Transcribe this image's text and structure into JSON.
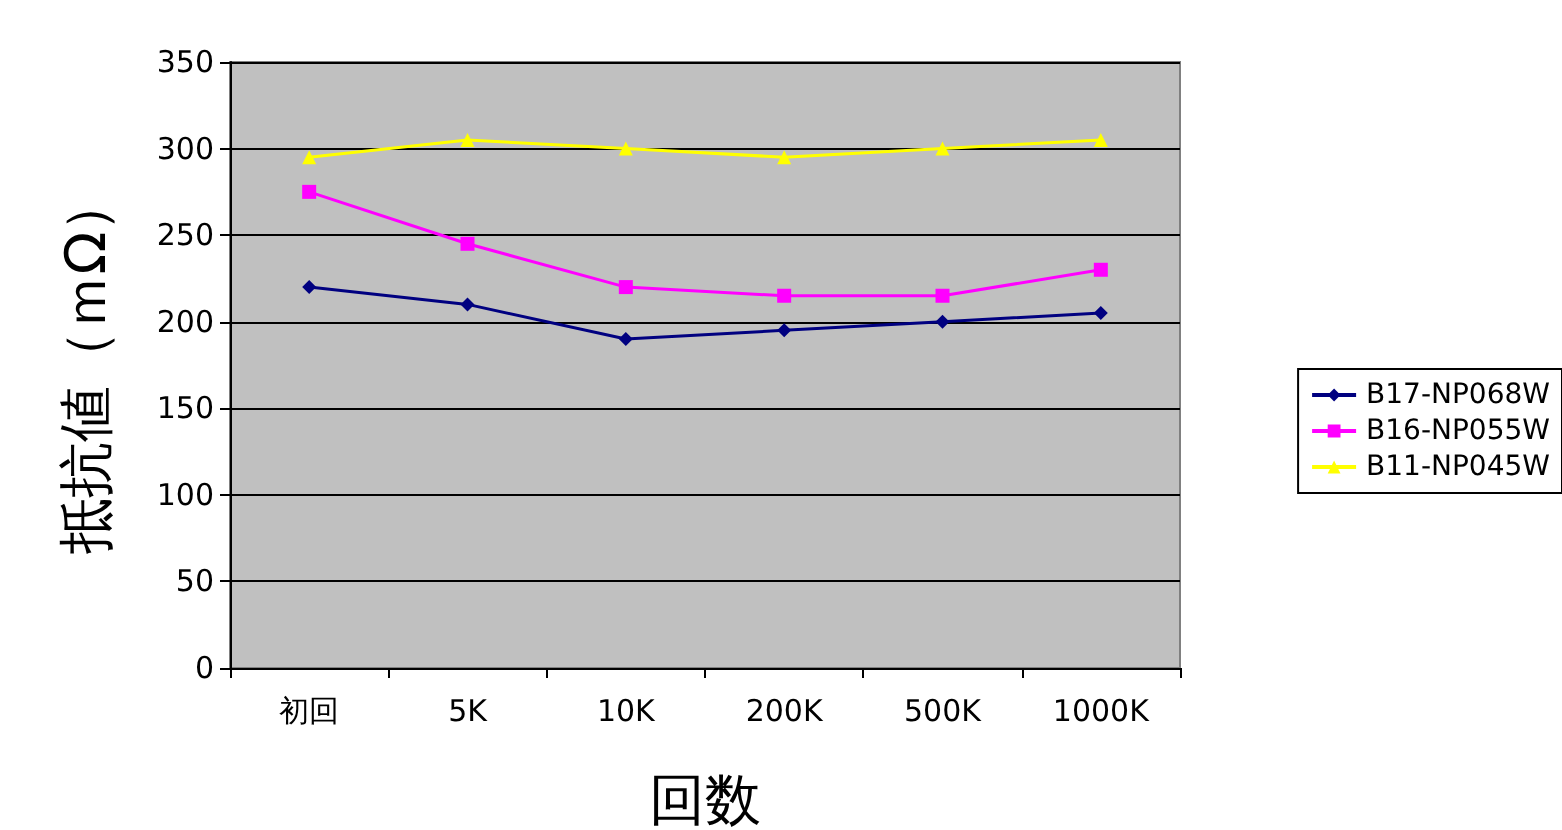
{
  "chart_data": {
    "type": "line",
    "xlabel": "回数",
    "ylabel": "抵抗値（ｍΩ）",
    "categories": [
      "初回",
      "5K",
      "10K",
      "200K",
      "500K",
      "1000K"
    ],
    "series": [
      {
        "name": "B17-NP068W",
        "color": "#000080",
        "marker": "diamond",
        "values": [
          220,
          210,
          190,
          195,
          200,
          205
        ]
      },
      {
        "name": "B16-NP055W",
        "color": "#ff00ff",
        "marker": "square",
        "values": [
          275,
          245,
          220,
          215,
          215,
          230
        ]
      },
      {
        "name": "B11-NP045W",
        "color": "#ffff00",
        "marker": "triangle",
        "values": [
          295,
          305,
          300,
          295,
          300,
          305
        ]
      }
    ],
    "ylim": [
      0,
      350
    ],
    "yticks": [
      0,
      50,
      100,
      150,
      200,
      250,
      300,
      350
    ],
    "grid": "y",
    "legend": "right"
  }
}
